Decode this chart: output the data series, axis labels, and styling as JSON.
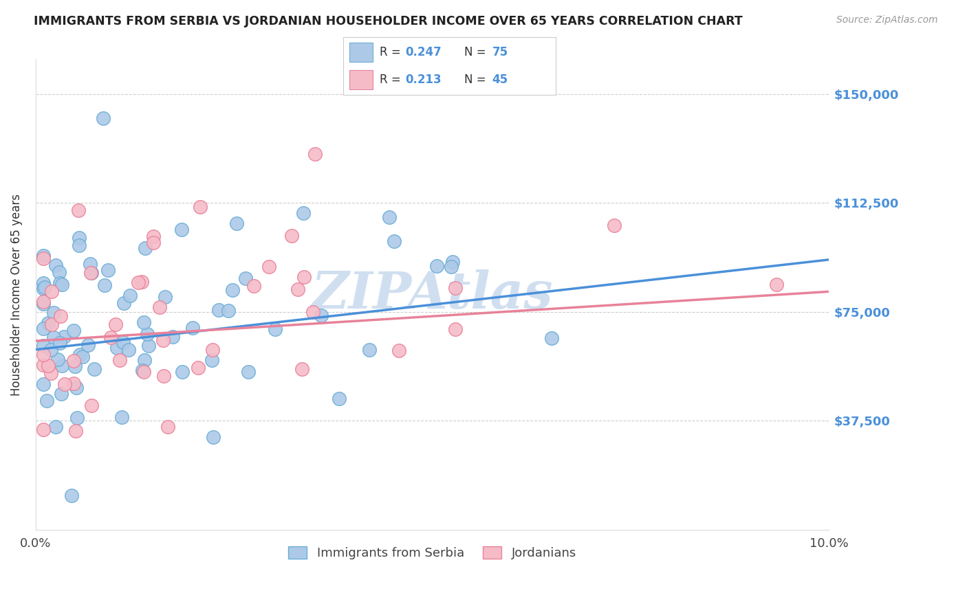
{
  "title": "IMMIGRANTS FROM SERBIA VS JORDANIAN HOUSEHOLDER INCOME OVER 65 YEARS CORRELATION CHART",
  "source": "Source: ZipAtlas.com",
  "ylabel": "Householder Income Over 65 years",
  "xlim": [
    0.0,
    0.1
  ],
  "ylim": [
    0,
    162000
  ],
  "xtick_vals": [
    0.0,
    0.02,
    0.04,
    0.06,
    0.08,
    0.1
  ],
  "xtick_labels": [
    "0.0%",
    "",
    "",
    "",
    "",
    "10.0%"
  ],
  "ytick_vals": [
    0,
    37500,
    75000,
    112500,
    150000
  ],
  "ytick_labels": [
    "",
    "$37,500",
    "$75,000",
    "$112,500",
    "$150,000"
  ],
  "serbia_R": 0.247,
  "serbia_N": 75,
  "jordan_R": 0.213,
  "jordan_N": 45,
  "serbia_color": "#adc9e8",
  "serbia_edge": "#6aaed6",
  "jordan_color": "#f5bcc8",
  "jordan_edge": "#e8829a",
  "serbia_line_color": "#4a90d9",
  "jordan_line_color": "#e8829a",
  "watermark": "ZIPAtlas",
  "watermark_color": "#d0dff0",
  "serbia_line_x0": 0.0,
  "serbia_line_y0": 62000,
  "serbia_line_x1": 0.1,
  "serbia_line_y1": 93000,
  "jordan_line_x0": 0.0,
  "jordan_line_y0": 65000,
  "jordan_line_x1": 0.1,
  "jordan_line_y1": 82000
}
